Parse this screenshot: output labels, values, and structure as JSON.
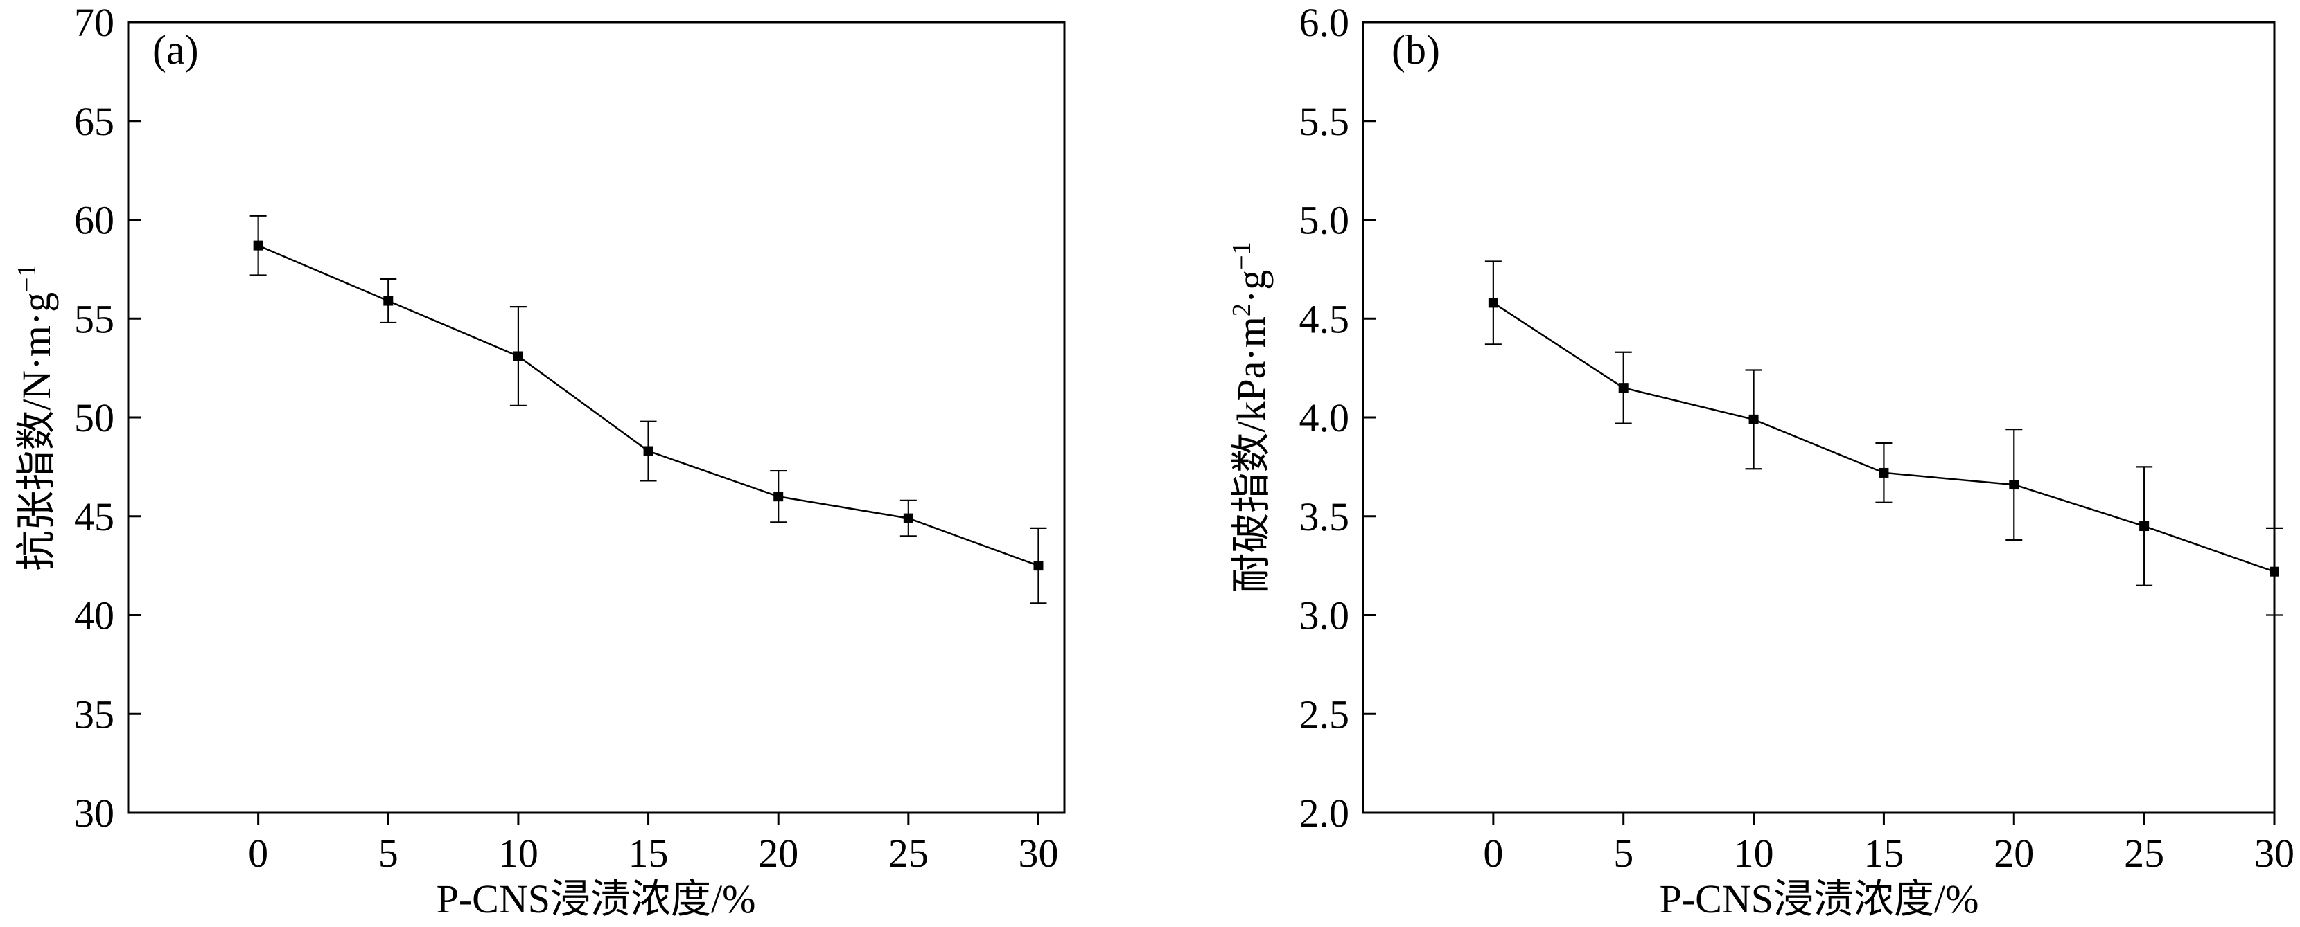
{
  "chart_data": [
    {
      "type": "line",
      "panel_label": "(a)",
      "xlabel": "P-CNS浸渍浓度/%",
      "ylabel": {
        "main": "抗张指数/N·m·g",
        "sup": "−1"
      },
      "xlim": [
        -5,
        31
      ],
      "ylim": [
        30,
        70
      ],
      "xticks": [
        0,
        5,
        10,
        15,
        20,
        25,
        30
      ],
      "yticks": [
        30,
        35,
        40,
        45,
        50,
        55,
        60,
        65,
        70
      ],
      "tick_decimals": 0,
      "grid": false,
      "legend": "none",
      "series": [
        {
          "x": [
            0,
            5,
            10,
            15,
            20,
            25,
            30
          ],
          "y": [
            58.7,
            55.9,
            53.1,
            48.3,
            46.0,
            44.9,
            42.5
          ],
          "error": [
            1.5,
            1.1,
            2.5,
            1.5,
            1.3,
            0.9,
            1.9
          ]
        }
      ]
    },
    {
      "type": "line",
      "panel_label": "(b)",
      "xlabel": "P-CNS浸渍浓度/%",
      "ylabel": {
        "main": "耐破指数/kPa·m",
        "sup1": "2",
        "mid": "·g",
        "sup2": "−1"
      },
      "xlim": [
        -5,
        30
      ],
      "ylim": [
        2.0,
        6.0
      ],
      "xticks": [
        0,
        5,
        10,
        15,
        20,
        25,
        30
      ],
      "yticks": [
        2.0,
        2.5,
        3.0,
        3.5,
        4.0,
        4.5,
        5.0,
        5.5,
        6.0
      ],
      "tick_decimals": 1,
      "grid": false,
      "legend": "none",
      "series": [
        {
          "x": [
            0,
            5,
            10,
            15,
            20,
            25,
            30
          ],
          "y": [
            4.58,
            4.15,
            3.99,
            3.72,
            3.66,
            3.45,
            3.22
          ],
          "error": [
            0.21,
            0.18,
            0.25,
            0.15,
            0.28,
            0.3,
            0.22
          ]
        }
      ]
    }
  ]
}
